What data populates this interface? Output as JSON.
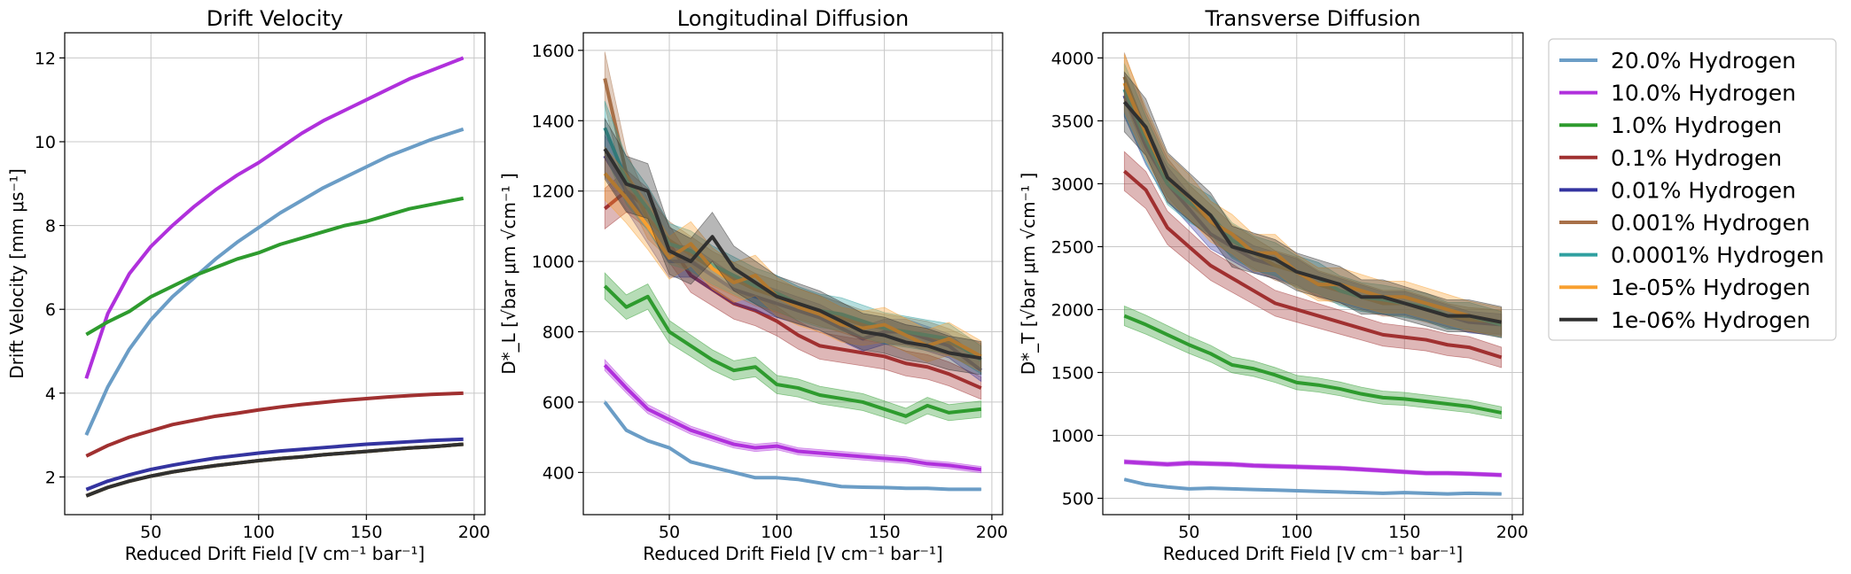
{
  "colors": {
    "h20": "#6b9dc6",
    "h10": "#b030dc",
    "h1": "#2e9b2e",
    "h01": "#a03030",
    "h001": "#3434a0",
    "h0001": "#a87048",
    "h00001": "#30a0a0",
    "h1e05": "#f8a030",
    "h1e06": "#303030"
  },
  "legend": {
    "entries": [
      {
        "key": "h20",
        "label": "20.0% Hydrogen"
      },
      {
        "key": "h10",
        "label": "10.0% Hydrogen"
      },
      {
        "key": "h1",
        "label": "1.0% Hydrogen"
      },
      {
        "key": "h01",
        "label": "0.1% Hydrogen"
      },
      {
        "key": "h001",
        "label": "0.01% Hydrogen"
      },
      {
        "key": "h0001",
        "label": "0.001% Hydrogen"
      },
      {
        "key": "h00001",
        "label": "0.0001% Hydrogen"
      },
      {
        "key": "h1e05",
        "label": "1e-05% Hydrogen"
      },
      {
        "key": "h1e06",
        "label": "1e-06% Hydrogen"
      }
    ]
  },
  "chart_data": [
    {
      "type": "line",
      "title": "Drift Velocity",
      "xlabel": "Reduced Drift Field [V cm⁻¹ bar⁻¹]",
      "ylabel": "Drift Velocity [mm μs⁻¹]",
      "xlim": [
        10,
        205
      ],
      "ylim": [
        1.1,
        12.6
      ],
      "xticks": [
        50,
        100,
        150,
        200
      ],
      "yticks": [
        2,
        4,
        6,
        8,
        10,
        12
      ],
      "grid": true,
      "x": [
        20,
        30,
        40,
        50,
        60,
        70,
        80,
        90,
        100,
        110,
        120,
        130,
        140,
        150,
        160,
        170,
        180,
        195
      ],
      "series": [
        {
          "key": "h20",
          "values": [
            3.0,
            4.15,
            5.05,
            5.75,
            6.3,
            6.75,
            7.2,
            7.6,
            7.95,
            8.3,
            8.6,
            8.9,
            9.15,
            9.4,
            9.65,
            9.85,
            10.05,
            10.3
          ]
        },
        {
          "key": "h10",
          "values": [
            4.35,
            5.9,
            6.85,
            7.5,
            8.0,
            8.45,
            8.85,
            9.2,
            9.5,
            9.85,
            10.2,
            10.5,
            10.75,
            11.0,
            11.25,
            11.5,
            11.7,
            12.0
          ]
        },
        {
          "key": "h1",
          "values": [
            5.4,
            5.7,
            5.95,
            6.3,
            6.55,
            6.8,
            7.0,
            7.2,
            7.35,
            7.55,
            7.7,
            7.85,
            8.0,
            8.1,
            8.25,
            8.4,
            8.5,
            8.65
          ]
        },
        {
          "key": "h01",
          "values": [
            2.5,
            2.75,
            2.95,
            3.1,
            3.25,
            3.35,
            3.45,
            3.52,
            3.6,
            3.67,
            3.73,
            3.78,
            3.83,
            3.87,
            3.91,
            3.94,
            3.97,
            4.0
          ]
        },
        {
          "key": "h001",
          "values": [
            1.7,
            1.9,
            2.05,
            2.18,
            2.28,
            2.37,
            2.45,
            2.51,
            2.57,
            2.62,
            2.66,
            2.7,
            2.74,
            2.78,
            2.81,
            2.84,
            2.87,
            2.9
          ]
        },
        {
          "key": "h0001",
          "values": [
            1.55,
            1.75,
            1.9,
            2.02,
            2.12,
            2.2,
            2.27,
            2.33,
            2.39,
            2.44,
            2.48,
            2.53,
            2.57,
            2.61,
            2.65,
            2.69,
            2.72,
            2.78
          ]
        },
        {
          "key": "h00001",
          "values": [
            1.55,
            1.75,
            1.9,
            2.02,
            2.12,
            2.2,
            2.27,
            2.33,
            2.39,
            2.44,
            2.48,
            2.53,
            2.57,
            2.61,
            2.65,
            2.69,
            2.72,
            2.78
          ]
        },
        {
          "key": "h1e05",
          "values": [
            1.55,
            1.75,
            1.9,
            2.02,
            2.12,
            2.2,
            2.27,
            2.33,
            2.39,
            2.44,
            2.48,
            2.53,
            2.57,
            2.61,
            2.65,
            2.69,
            2.72,
            2.78
          ]
        },
        {
          "key": "h1e06",
          "values": [
            1.55,
            1.75,
            1.9,
            2.02,
            2.12,
            2.2,
            2.27,
            2.33,
            2.39,
            2.44,
            2.48,
            2.53,
            2.57,
            2.61,
            2.65,
            2.69,
            2.72,
            2.78
          ]
        }
      ]
    },
    {
      "type": "line",
      "title": "Longitudinal Diffusion",
      "xlabel": "Reduced Drift Field [V cm⁻¹ bar⁻¹]",
      "ylabel": "D*_L [√bar μm √cm⁻¹ ]",
      "xlim": [
        10,
        205
      ],
      "ylim": [
        280,
        1650
      ],
      "xticks": [
        50,
        100,
        150,
        200
      ],
      "yticks": [
        400,
        600,
        800,
        1000,
        1200,
        1400,
        1600
      ],
      "grid": true,
      "x": [
        20,
        30,
        40,
        50,
        60,
        70,
        80,
        90,
        100,
        110,
        120,
        130,
        140,
        150,
        160,
        170,
        180,
        195
      ],
      "series": [
        {
          "key": "h20",
          "values": [
            600,
            520,
            490,
            470,
            430,
            415,
            400,
            385,
            385,
            380,
            370,
            360,
            358,
            357,
            355,
            355,
            352,
            352
          ]
        },
        {
          "key": "h10",
          "values": [
            705,
            640,
            580,
            550,
            520,
            500,
            480,
            470,
            475,
            460,
            455,
            450,
            445,
            440,
            435,
            425,
            420,
            408
          ]
        },
        {
          "key": "h1",
          "values": [
            930,
            870,
            900,
            800,
            760,
            720,
            690,
            700,
            650,
            640,
            620,
            610,
            600,
            580,
            560,
            590,
            570,
            580
          ]
        },
        {
          "key": "h01",
          "values": [
            1150,
            1200,
            1150,
            1050,
            960,
            920,
            880,
            860,
            830,
            790,
            760,
            750,
            740,
            730,
            710,
            700,
            680,
            640
          ]
        },
        {
          "key": "h001",
          "values": [
            1300,
            1200,
            1100,
            1000,
            1000,
            960,
            920,
            900,
            880,
            860,
            840,
            810,
            780,
            800,
            800,
            780,
            760,
            690
          ]
        },
        {
          "key": "h0001",
          "values": [
            1520,
            1250,
            1120,
            1060,
            1020,
            980,
            950,
            920,
            900,
            880,
            860,
            840,
            820,
            810,
            800,
            790,
            770,
            730
          ]
        },
        {
          "key": "h00001",
          "values": [
            1380,
            1230,
            1150,
            1050,
            1030,
            990,
            960,
            930,
            910,
            880,
            860,
            850,
            830,
            810,
            800,
            790,
            780,
            720
          ]
        },
        {
          "key": "h1e05",
          "values": [
            1250,
            1180,
            1100,
            1010,
            1050,
            980,
            940,
            960,
            900,
            870,
            850,
            820,
            810,
            820,
            790,
            760,
            780,
            730
          ]
        },
        {
          "key": "h1e06",
          "values": [
            1320,
            1220,
            1200,
            1030,
            1000,
            1070,
            980,
            940,
            900,
            880,
            860,
            830,
            800,
            790,
            770,
            760,
            740,
            725
          ]
        }
      ]
    },
    {
      "type": "line",
      "title": "Transverse Diffusion",
      "xlabel": "Reduced Drift Field [V cm⁻¹ bar⁻¹]",
      "ylabel": "D*_T [√bar μm √cm⁻¹ ]",
      "xlim": [
        10,
        205
      ],
      "ylim": [
        370,
        4200
      ],
      "xticks": [
        50,
        100,
        150,
        200
      ],
      "yticks": [
        500,
        1000,
        1500,
        2000,
        2500,
        3000,
        3500,
        4000
      ],
      "grid": true,
      "x": [
        20,
        30,
        40,
        50,
        60,
        70,
        80,
        90,
        100,
        110,
        120,
        130,
        140,
        150,
        160,
        170,
        180,
        195
      ],
      "series": [
        {
          "key": "h20",
          "values": [
            650,
            610,
            590,
            575,
            580,
            575,
            570,
            565,
            560,
            555,
            550,
            545,
            540,
            545,
            540,
            535,
            540,
            535
          ]
        },
        {
          "key": "h10",
          "values": [
            790,
            780,
            770,
            780,
            775,
            770,
            760,
            755,
            750,
            745,
            740,
            730,
            720,
            710,
            700,
            700,
            695,
            685
          ]
        },
        {
          "key": "h1",
          "values": [
            1950,
            1880,
            1800,
            1720,
            1650,
            1560,
            1530,
            1480,
            1420,
            1400,
            1370,
            1330,
            1300,
            1290,
            1270,
            1250,
            1230,
            1180
          ]
        },
        {
          "key": "h01",
          "values": [
            3100,
            2950,
            2650,
            2500,
            2350,
            2250,
            2150,
            2050,
            2000,
            1950,
            1900,
            1850,
            1800,
            1780,
            1760,
            1720,
            1700,
            1620
          ]
        },
        {
          "key": "h001",
          "values": [
            3700,
            3300,
            3000,
            2800,
            2600,
            2500,
            2400,
            2350,
            2300,
            2200,
            2150,
            2100,
            2050,
            2050,
            2000,
            1950,
            1900,
            1880
          ]
        },
        {
          "key": "h0001",
          "values": [
            3850,
            3400,
            3050,
            2850,
            2700,
            2550,
            2450,
            2350,
            2300,
            2200,
            2150,
            2100,
            2050,
            2050,
            2000,
            1950,
            1920,
            1900
          ]
        },
        {
          "key": "h00001",
          "values": [
            3750,
            3350,
            3000,
            2850,
            2750,
            2550,
            2450,
            2400,
            2300,
            2250,
            2150,
            2100,
            2080,
            2050,
            2020,
            1950,
            1950,
            1880
          ]
        },
        {
          "key": "h1e05",
          "values": [
            3800,
            3400,
            3050,
            2900,
            2700,
            2600,
            2450,
            2450,
            2300,
            2200,
            2200,
            2150,
            2100,
            2100,
            2050,
            2000,
            1950,
            1900
          ]
        },
        {
          "key": "h1e06",
          "values": [
            3650,
            3450,
            3050,
            2900,
            2750,
            2500,
            2450,
            2400,
            2300,
            2250,
            2200,
            2100,
            2100,
            2050,
            2000,
            1950,
            1950,
            1900
          ]
        }
      ]
    }
  ]
}
